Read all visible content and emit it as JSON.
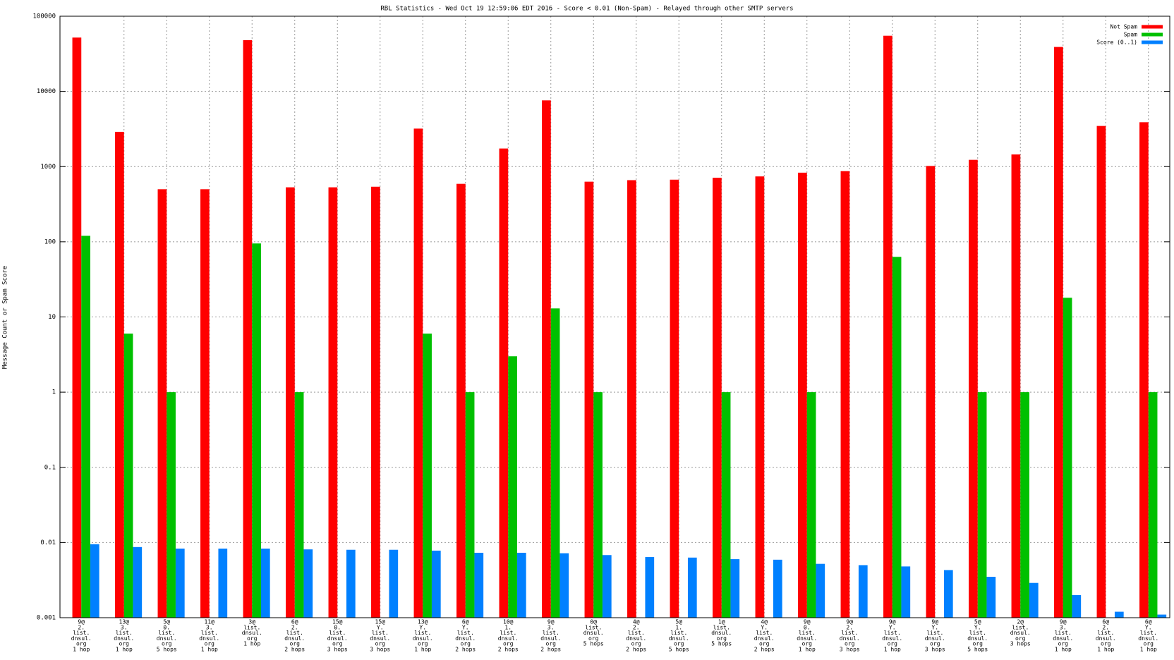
{
  "chart_data": {
    "type": "bar",
    "title": "RBL Statistics - Wed Oct 19 12:59:06 EDT 2016 - Score < 0.01 (Non-Spam) - Relayed through other SMTP servers",
    "y_label": "Message Count or Spam Score",
    "log_scale": true,
    "grid": true,
    "legend": "top-right",
    "ylim": [
      0.001,
      100000
    ],
    "yticks": [
      0.001,
      0.01,
      0.1,
      1,
      10,
      100,
      1000,
      10000,
      100000
    ],
    "categories": [
      [
        "9@",
        "2.",
        "list.",
        "dnsul.",
        "org",
        "1 hop"
      ],
      [
        "13@",
        "3.",
        "list.",
        "dnsul.",
        "org",
        "1 hop"
      ],
      [
        "5@",
        "0.",
        "list.",
        "dnsul.",
        "org",
        "5 hops"
      ],
      [
        "11@",
        "3.",
        "list.",
        "dnsul.",
        "org",
        "1 hop"
      ],
      [
        "3@",
        "list.",
        "dnsul.",
        "org",
        "1 hop"
      ],
      [
        "6@",
        "2.",
        "list.",
        "dnsul.",
        "org",
        "2 hops"
      ],
      [
        "15@",
        "0.",
        "list.",
        "dnsul.",
        "org",
        "3 hops"
      ],
      [
        "15@",
        "Y.",
        "list.",
        "dnsul.",
        "org",
        "3 hops"
      ],
      [
        "13@",
        "Y.",
        "list.",
        "dnsul.",
        "org",
        "1 hop"
      ],
      [
        "6@",
        "Y.",
        "list.",
        "dnsul.",
        "org",
        "2 hops"
      ],
      [
        "10@",
        "1.",
        "list.",
        "dnsul.",
        "org",
        "2 hops"
      ],
      [
        "9@",
        "3.",
        "list.",
        "dnsul.",
        "org",
        "2 hops"
      ],
      [
        "0@",
        "list.",
        "dnsul.",
        "org",
        "5 hops"
      ],
      [
        "4@",
        "2.",
        "list.",
        "dnsul.",
        "org",
        "2 hops"
      ],
      [
        "5@",
        "1.",
        "list.",
        "dnsul.",
        "org",
        "5 hops"
      ],
      [
        "1@",
        "list.",
        "dnsul.",
        "org",
        "5 hops"
      ],
      [
        "4@",
        "Y.",
        "list.",
        "dnsul.",
        "org",
        "2 hops"
      ],
      [
        "9@",
        "0.",
        "list.",
        "dnsul.",
        "org",
        "1 hop"
      ],
      [
        "9@",
        "2.",
        "list.",
        "dnsul.",
        "org",
        "3 hops"
      ],
      [
        "9@",
        "Y.",
        "list.",
        "dnsul.",
        "org",
        "1 hop"
      ],
      [
        "9@",
        "Y.",
        "list.",
        "dnsul.",
        "org",
        "3 hops"
      ],
      [
        "5@",
        "Y.",
        "list.",
        "dnsul.",
        "org",
        "5 hops"
      ],
      [
        "2@",
        "list.",
        "dnsul.",
        "org",
        "3 hops"
      ],
      [
        "9@",
        "3.",
        "list.",
        "dnsul.",
        "org",
        "1 hop"
      ],
      [
        "6@",
        "2.",
        "list.",
        "dnsul.",
        "org",
        "1 hop"
      ],
      [
        "6@",
        "Y.",
        "list.",
        "dnsul.",
        "org",
        "1 hop"
      ]
    ],
    "series": [
      {
        "name": "Not Spam",
        "color": "#ff0000",
        "values": [
          52000,
          2900,
          500,
          500,
          48000,
          530,
          530,
          540,
          3200,
          590,
          1740,
          7600,
          630,
          660,
          670,
          710,
          740,
          830,
          870,
          55000,
          1020,
          1230,
          1450,
          39000,
          3470,
          3890
        ]
      },
      {
        "name": "Spam",
        "color": "#00c000",
        "values": [
          120,
          6,
          1,
          null,
          95,
          1,
          null,
          null,
          6,
          1,
          3,
          13,
          1,
          null,
          null,
          1,
          null,
          1,
          null,
          63,
          null,
          1,
          1,
          18,
          null,
          1
        ]
      },
      {
        "name": "Score (0..1)",
        "color": "#0080ff",
        "values": [
          0.0095,
          0.0087,
          0.0083,
          0.0083,
          0.0083,
          0.0081,
          0.008,
          0.008,
          0.0078,
          0.0073,
          0.0073,
          0.0072,
          0.0068,
          0.0064,
          0.0063,
          0.006,
          0.0059,
          0.0052,
          0.005,
          0.0048,
          0.0043,
          0.0035,
          0.0029,
          0.002,
          0.0012,
          0.0011
        ]
      }
    ]
  }
}
